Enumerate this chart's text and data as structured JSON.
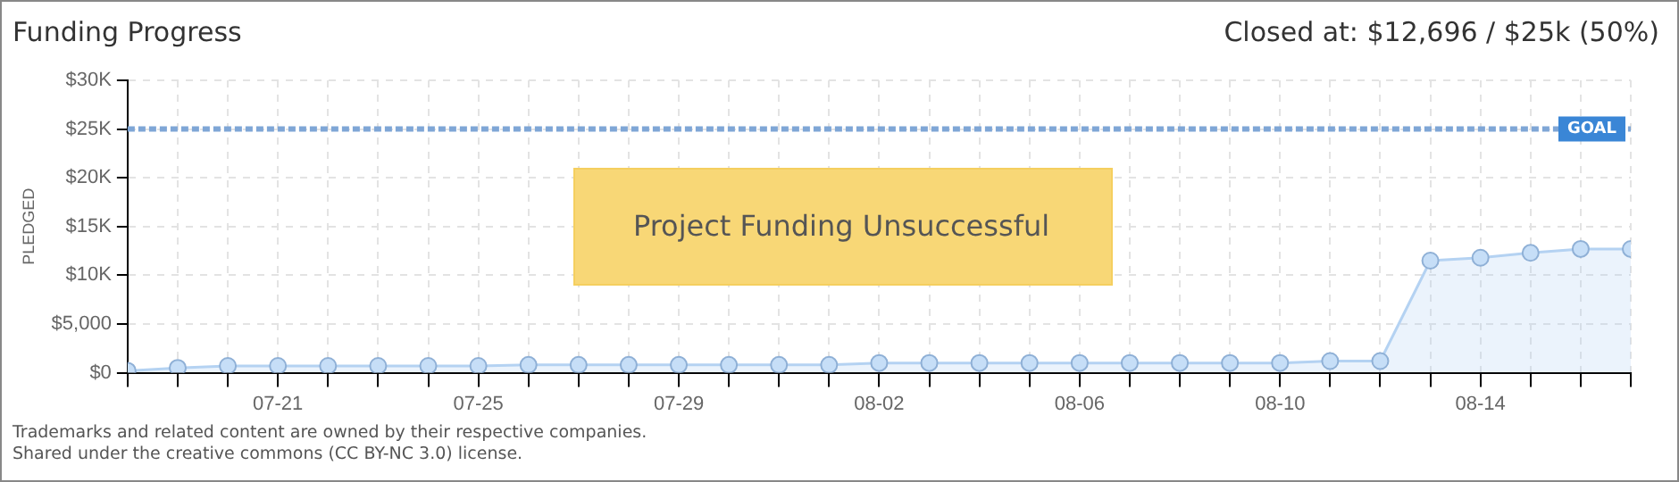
{
  "chart_data": {
    "type": "area",
    "title": "Funding Progress",
    "subtitle": "Closed at: $12,696 / $25k (50%)",
    "ylabel": "PLEDGED",
    "x": [
      "--07-18",
      "--07-19",
      "--07-20",
      "--07-21",
      "--07-22",
      "--07-23",
      "--07-24",
      "--07-25",
      "--07-26",
      "--07-27",
      "--07-28",
      "--07-29",
      "--07-30",
      "--07-31",
      "--08-01",
      "--08-02",
      "--08-03",
      "--08-04",
      "--08-05",
      "--08-06",
      "--08-07",
      "--08-08",
      "--08-09",
      "--08-10",
      "--08-11",
      "--08-12",
      "--08-13",
      "--08-14",
      "--08-15",
      "--08-16",
      "--08-17"
    ],
    "series": [
      {
        "color": "#b4d2f2",
        "values": [
          200,
          500,
          700,
          700,
          700,
          700,
          700,
          700,
          800,
          800,
          800,
          800,
          800,
          800,
          800,
          1000,
          1000,
          1000,
          1000,
          1000,
          1000,
          1000,
          1000,
          1000,
          1200,
          1200,
          11500,
          11800,
          12300,
          12700,
          12696
        ]
      }
    ],
    "xlim": [
      "--07-18",
      "--08-17"
    ],
    "xticks": [
      {
        "value": "--07-18",
        "label": null
      },
      {
        "value": "--07-19",
        "label": null
      },
      {
        "value": "--07-20",
        "label": null
      },
      {
        "value": "--07-21",
        "label": "07-21"
      },
      {
        "value": "--07-22",
        "label": null
      },
      {
        "value": "--07-23",
        "label": null
      },
      {
        "value": "--07-24",
        "label": null
      },
      {
        "value": "--07-25",
        "label": "07-25"
      },
      {
        "value": "--07-26",
        "label": null
      },
      {
        "value": "--07-27",
        "label": null
      },
      {
        "value": "--07-28",
        "label": null
      },
      {
        "value": "--07-29",
        "label": "07-29"
      },
      {
        "value": "--07-30",
        "label": null
      },
      {
        "value": "--07-31",
        "label": null
      },
      {
        "value": "--08-01",
        "label": null
      },
      {
        "value": "--08-02",
        "label": "08-02"
      },
      {
        "value": "--08-03",
        "label": null
      },
      {
        "value": "--08-04",
        "label": null
      },
      {
        "value": "--08-05",
        "label": null
      },
      {
        "value": "--08-06",
        "label": "08-06"
      },
      {
        "value": "--08-07",
        "label": null
      },
      {
        "value": "--08-08",
        "label": null
      },
      {
        "value": "--08-09",
        "label": null
      },
      {
        "value": "--08-10",
        "label": "08-10"
      },
      {
        "value": "--08-11",
        "label": null
      },
      {
        "value": "--08-12",
        "label": null
      },
      {
        "value": "--08-13",
        "label": null
      },
      {
        "value": "--08-14",
        "label": "08-14"
      },
      {
        "value": "--08-15",
        "label": null
      },
      {
        "value": "--08-16",
        "label": null
      },
      {
        "value": "--08-17",
        "label": null
      }
    ],
    "ylim": [
      0,
      30000
    ],
    "yticks": [
      {
        "value": 0,
        "label": "$0"
      },
      {
        "value": 5000,
        "label": "$5,000"
      },
      {
        "value": 10000,
        "label": "$10K"
      },
      {
        "value": 15000,
        "label": "$15K"
      },
      {
        "value": 20000,
        "label": "$20K"
      },
      {
        "value": 25000,
        "label": "$25K"
      },
      {
        "value": 30000,
        "label": "$30K"
      }
    ],
    "grid": true,
    "marker": "circle",
    "legend": false,
    "ref_lines": [
      {
        "axis": "y",
        "value": 25000,
        "label": "GOAL",
        "color": "#7fa6d6",
        "line_style": "dashed"
      }
    ],
    "annotations": [
      "Project Funding Unsuccessful",
      "Trademarks and related content are owned by their respective companies.",
      "Shared under the creative commons (CC BY-NC 3.0) license."
    ]
  }
}
